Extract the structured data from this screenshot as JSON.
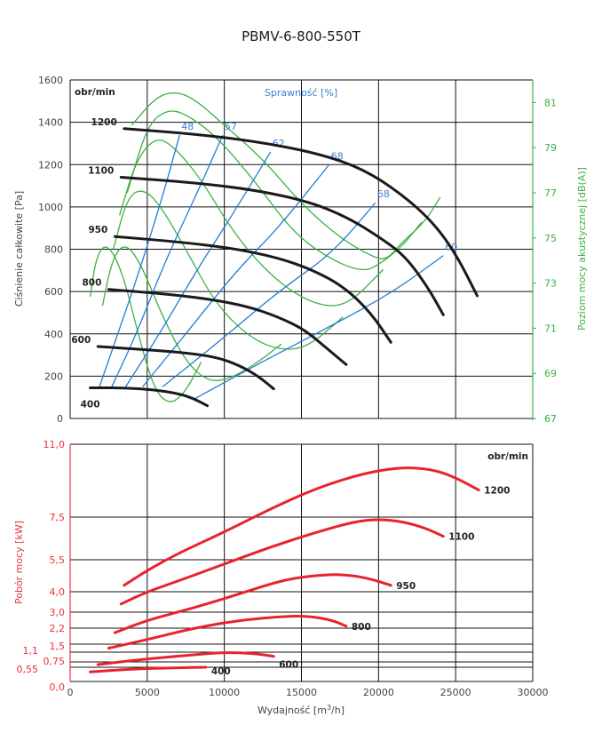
{
  "chart_data": [
    {
      "type": "line",
      "title": "PBMV-6-800-550T",
      "xlabel": "Wydajność [m3/h]",
      "ylabel": "Ciśnienie całkowite [Pa]",
      "y2label": "Poziom mocy akustycznej [dB(A)]",
      "efficiency_label": "Sprawność [%]",
      "speed_unit_label": "obr/min",
      "xlim": [
        0,
        30000
      ],
      "ylim": [
        0,
        1600
      ],
      "y2lim": [
        67,
        82
      ],
      "xticks": [
        "0",
        "5000",
        "10000",
        "15000",
        "20000",
        "25000",
        "30000"
      ],
      "yticks": [
        "0",
        "200",
        "400",
        "600",
        "800",
        "1000",
        "1200",
        "1400",
        "1600"
      ],
      "y2ticks": [
        "67",
        "69",
        "71",
        "73",
        "75",
        "77",
        "79",
        "81"
      ],
      "grid": true,
      "pressure_series": [
        {
          "name": "1200",
          "x": [
            3500,
            8000,
            12000,
            16000,
            19000,
            21500,
            23500,
            25000,
            26400
          ],
          "y": [
            1370,
            1345,
            1310,
            1255,
            1180,
            1060,
            930,
            780,
            580
          ]
        },
        {
          "name": "1100",
          "x": [
            3300,
            8000,
            12000,
            15500,
            18000,
            20000,
            21700,
            23200,
            24200
          ],
          "y": [
            1140,
            1115,
            1080,
            1025,
            950,
            860,
            770,
            620,
            490
          ]
        },
        {
          "name": "950",
          "x": [
            2900,
            7000,
            10500,
            13500,
            15800,
            17800,
            19500,
            20800
          ],
          "y": [
            860,
            835,
            805,
            760,
            700,
            620,
            500,
            360
          ]
        },
        {
          "name": "800",
          "x": [
            2500,
            6000,
            9000,
            11500,
            13500,
            15200,
            16500,
            17900
          ],
          "y": [
            610,
            590,
            565,
            530,
            480,
            420,
            340,
            255
          ]
        },
        {
          "name": "600",
          "x": [
            1800,
            5000,
            7500,
            9500,
            11000,
            12200,
            13200
          ],
          "y": [
            340,
            325,
            310,
            290,
            250,
            200,
            140
          ]
        },
        {
          "name": "400",
          "x": [
            1300,
            3500,
            5500,
            7000,
            8000,
            8900
          ],
          "y": [
            145,
            145,
            135,
            118,
            95,
            60
          ]
        }
      ],
      "efficiency_series": [
        {
          "name": "48",
          "x": [
            1900,
            3000,
            4500,
            6000,
            7100
          ],
          "y": [
            150,
            380,
            700,
            1050,
            1340
          ]
        },
        {
          "name": "57",
          "x": [
            2700,
            4300,
            6200,
            8200,
            9900
          ],
          "y": [
            150,
            400,
            750,
            1060,
            1340
          ]
        },
        {
          "name": "62",
          "x": [
            3600,
            5800,
            8200,
            10500,
            13000
          ],
          "y": [
            150,
            400,
            700,
            960,
            1260
          ]
        },
        {
          "name": "68",
          "x": [
            4700,
            7500,
            10800,
            13500,
            16800
          ],
          "y": [
            150,
            400,
            700,
            900,
            1200
          ]
        },
        {
          "name": "68",
          "x": [
            6000,
            9600,
            13500,
            17000,
            19800
          ],
          "y": [
            150,
            360,
            600,
            780,
            1020
          ]
        },
        {
          "name": "60",
          "x": [
            8000,
            12500,
            17000,
            21000,
            24200
          ],
          "y": [
            90,
            270,
            440,
            600,
            770
          ]
        }
      ],
      "efficiency_labels": [
        "48",
        "57",
        "62",
        "68",
        "68",
        "60"
      ],
      "noise_series_note": "green acoustic power curves (dB(A)) per speed",
      "noise_series": [
        {
          "name": "1200",
          "x": [
            4000,
            5500,
            6700,
            8000,
            10000,
            12500,
            15000,
            17500,
            19500,
            20500,
            21500,
            23000,
            24000
          ],
          "y": [
            80.0,
            81.2,
            81.5,
            81.2,
            80.0,
            78.5,
            76.5,
            75.0,
            74.2,
            74.0,
            74.8,
            75.7,
            76.8
          ]
        },
        {
          "name": "1100",
          "x": [
            3700,
            5000,
            6300,
            7500,
            9500,
            12000,
            14500,
            17000,
            19000,
            20000,
            21500,
            22800
          ],
          "y": [
            77.0,
            80.0,
            80.7,
            80.5,
            79.5,
            77.5,
            75.2,
            74.0,
            73.5,
            73.8,
            74.6,
            75.7
          ]
        },
        {
          "name": "950",
          "x": [
            3200,
            4300,
            5600,
            6800,
            8500,
            10800,
            13500,
            16000,
            18000,
            20300
          ],
          "y": [
            76.0,
            78.5,
            79.5,
            79.0,
            77.6,
            75.0,
            73.0,
            72.0,
            72.0,
            73.6
          ]
        },
        {
          "name": "800",
          "x": [
            2800,
            3700,
            4700,
            5800,
            7500,
            9500,
            11800,
            13800,
            15500,
            17700
          ],
          "y": [
            74.5,
            76.8,
            77.2,
            76.5,
            74.5,
            72.0,
            70.5,
            70.0,
            70.2,
            71.5
          ]
        },
        {
          "name": "600",
          "x": [
            2100,
            2700,
            3500,
            4500,
            6000,
            7500,
            9000,
            10500,
            12200,
            13700
          ],
          "y": [
            72.0,
            74.0,
            74.8,
            74.0,
            71.5,
            69.5,
            68.6,
            68.8,
            69.5,
            70.3
          ]
        },
        {
          "name": "400",
          "x": [
            1300,
            1700,
            2400,
            3400,
            4500,
            5500,
            6500,
            7500,
            8500
          ],
          "y": [
            72.4,
            74.2,
            74.8,
            73.5,
            70.5,
            68.2,
            67.6,
            68.2,
            69.5
          ]
        }
      ]
    },
    {
      "type": "line",
      "xlabel": "Wydajność [m3/h]",
      "ylabel": "Pobór mocy [kW]",
      "speed_unit_label": "obr/min",
      "xlim": [
        0,
        30000
      ],
      "ylim": [
        0.0,
        11.0
      ],
      "xticks": [
        "0",
        "5000",
        "10000",
        "15000",
        "20000",
        "25000",
        "30000"
      ],
      "yticks": [
        "0,0",
        "0,55",
        "0,75",
        "1,1",
        "1,5",
        "2,2",
        "3,0",
        "4,0",
        "5,5",
        "7,5",
        "11,0"
      ],
      "ytick_values": [
        0.0,
        0.55,
        0.75,
        1.1,
        1.5,
        2.2,
        3.0,
        4.0,
        5.5,
        7.5,
        11.0
      ],
      "grid": true,
      "series": [
        {
          "name": "1200",
          "x": [
            3500,
            5000,
            7000,
            10000,
            13000,
            16000,
            19000,
            21500,
            23500,
            25000,
            26500
          ],
          "y": [
            4.3,
            5.0,
            5.8,
            6.8,
            7.9,
            8.9,
            9.6,
            9.9,
            9.8,
            9.4,
            8.8
          ]
        },
        {
          "name": "1100",
          "x": [
            3300,
            5000,
            7000,
            10000,
            13000,
            16000,
            18500,
            20000,
            21500,
            23000,
            24200
          ],
          "y": [
            3.4,
            4.0,
            4.5,
            5.3,
            6.1,
            6.8,
            7.3,
            7.4,
            7.3,
            7.0,
            6.6
          ]
        },
        {
          "name": "950",
          "x": [
            2900,
            5000,
            8000,
            11000,
            14000,
            16500,
            18000,
            19500,
            20800
          ],
          "y": [
            2.0,
            2.6,
            3.2,
            3.9,
            4.6,
            4.8,
            4.8,
            4.6,
            4.3
          ]
        },
        {
          "name": "800",
          "x": [
            2500,
            5000,
            8000,
            11000,
            14000,
            15500,
            17000,
            17900
          ],
          "y": [
            1.3,
            1.7,
            2.2,
            2.6,
            2.8,
            2.8,
            2.6,
            2.3
          ]
        },
        {
          "name": "600",
          "x": [
            1800,
            4000,
            7000,
            10000,
            12000,
            13200
          ],
          "y": [
            0.65,
            0.8,
            0.96,
            1.1,
            1.05,
            0.95
          ]
        },
        {
          "name": "400",
          "x": [
            1300,
            4000,
            7000,
            8800
          ],
          "y": [
            0.37,
            0.48,
            0.53,
            0.55
          ]
        }
      ],
      "series_labels": [
        "1200",
        "1100",
        "950",
        "800",
        "600",
        "400"
      ]
    }
  ]
}
